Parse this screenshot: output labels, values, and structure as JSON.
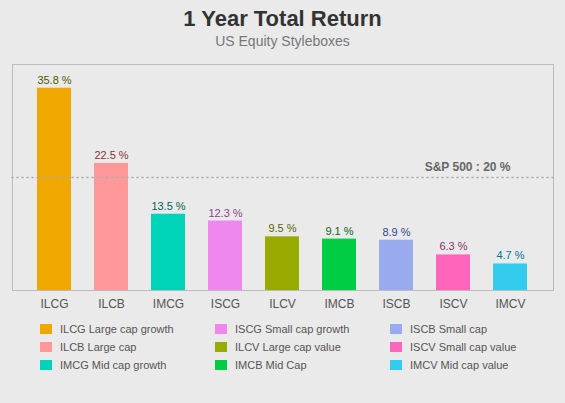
{
  "chart_data": {
    "type": "bar",
    "title": "1 Year Total Return",
    "subtitle": "US Equity Styleboxes",
    "categories": [
      "ILCG",
      "ILCB",
      "IMCG",
      "ISCG",
      "ILCV",
      "IMCB",
      "ISCB",
      "ISCV",
      "IMCV"
    ],
    "values": [
      35.8,
      22.5,
      13.5,
      12.3,
      9.5,
      9.1,
      8.9,
      6.3,
      4.7
    ],
    "value_labels": [
      "35.8 %",
      "22.5 %",
      "13.5 %",
      "12.3 %",
      "9.5 %",
      "9.1 %",
      "8.9 %",
      "6.3 %",
      "4.7 %"
    ],
    "value_label_colors": [
      "#555500",
      "#883333",
      "#006655",
      "#884488",
      "#556600",
      "#006622",
      "#334488",
      "#883366",
      "#007799"
    ],
    "colors": [
      "#F0A800",
      "#FF9999",
      "#00D4B8",
      "#EE88EE",
      "#99AA00",
      "#00CC44",
      "#99AAEE",
      "#FF66BB",
      "#33CCEE"
    ],
    "ylim": [
      0,
      40
    ],
    "tick_labels": "x",
    "grid": false,
    "data_labels": true,
    "annotations": [
      {
        "text": "S&P 500 : 20 %",
        "y": 20
      }
    ],
    "legend": "bottom",
    "legend_labels": [
      "ILCG Large cap growth",
      "ILCB Large cap",
      "IMCG Mid cap growth",
      "ISCG Small cap growth",
      "ILCV Large cap value",
      "IMCB Mid Cap",
      "ISCB Small cap",
      "ISCV Small cap value",
      "IMCV Mid cap value"
    ]
  }
}
